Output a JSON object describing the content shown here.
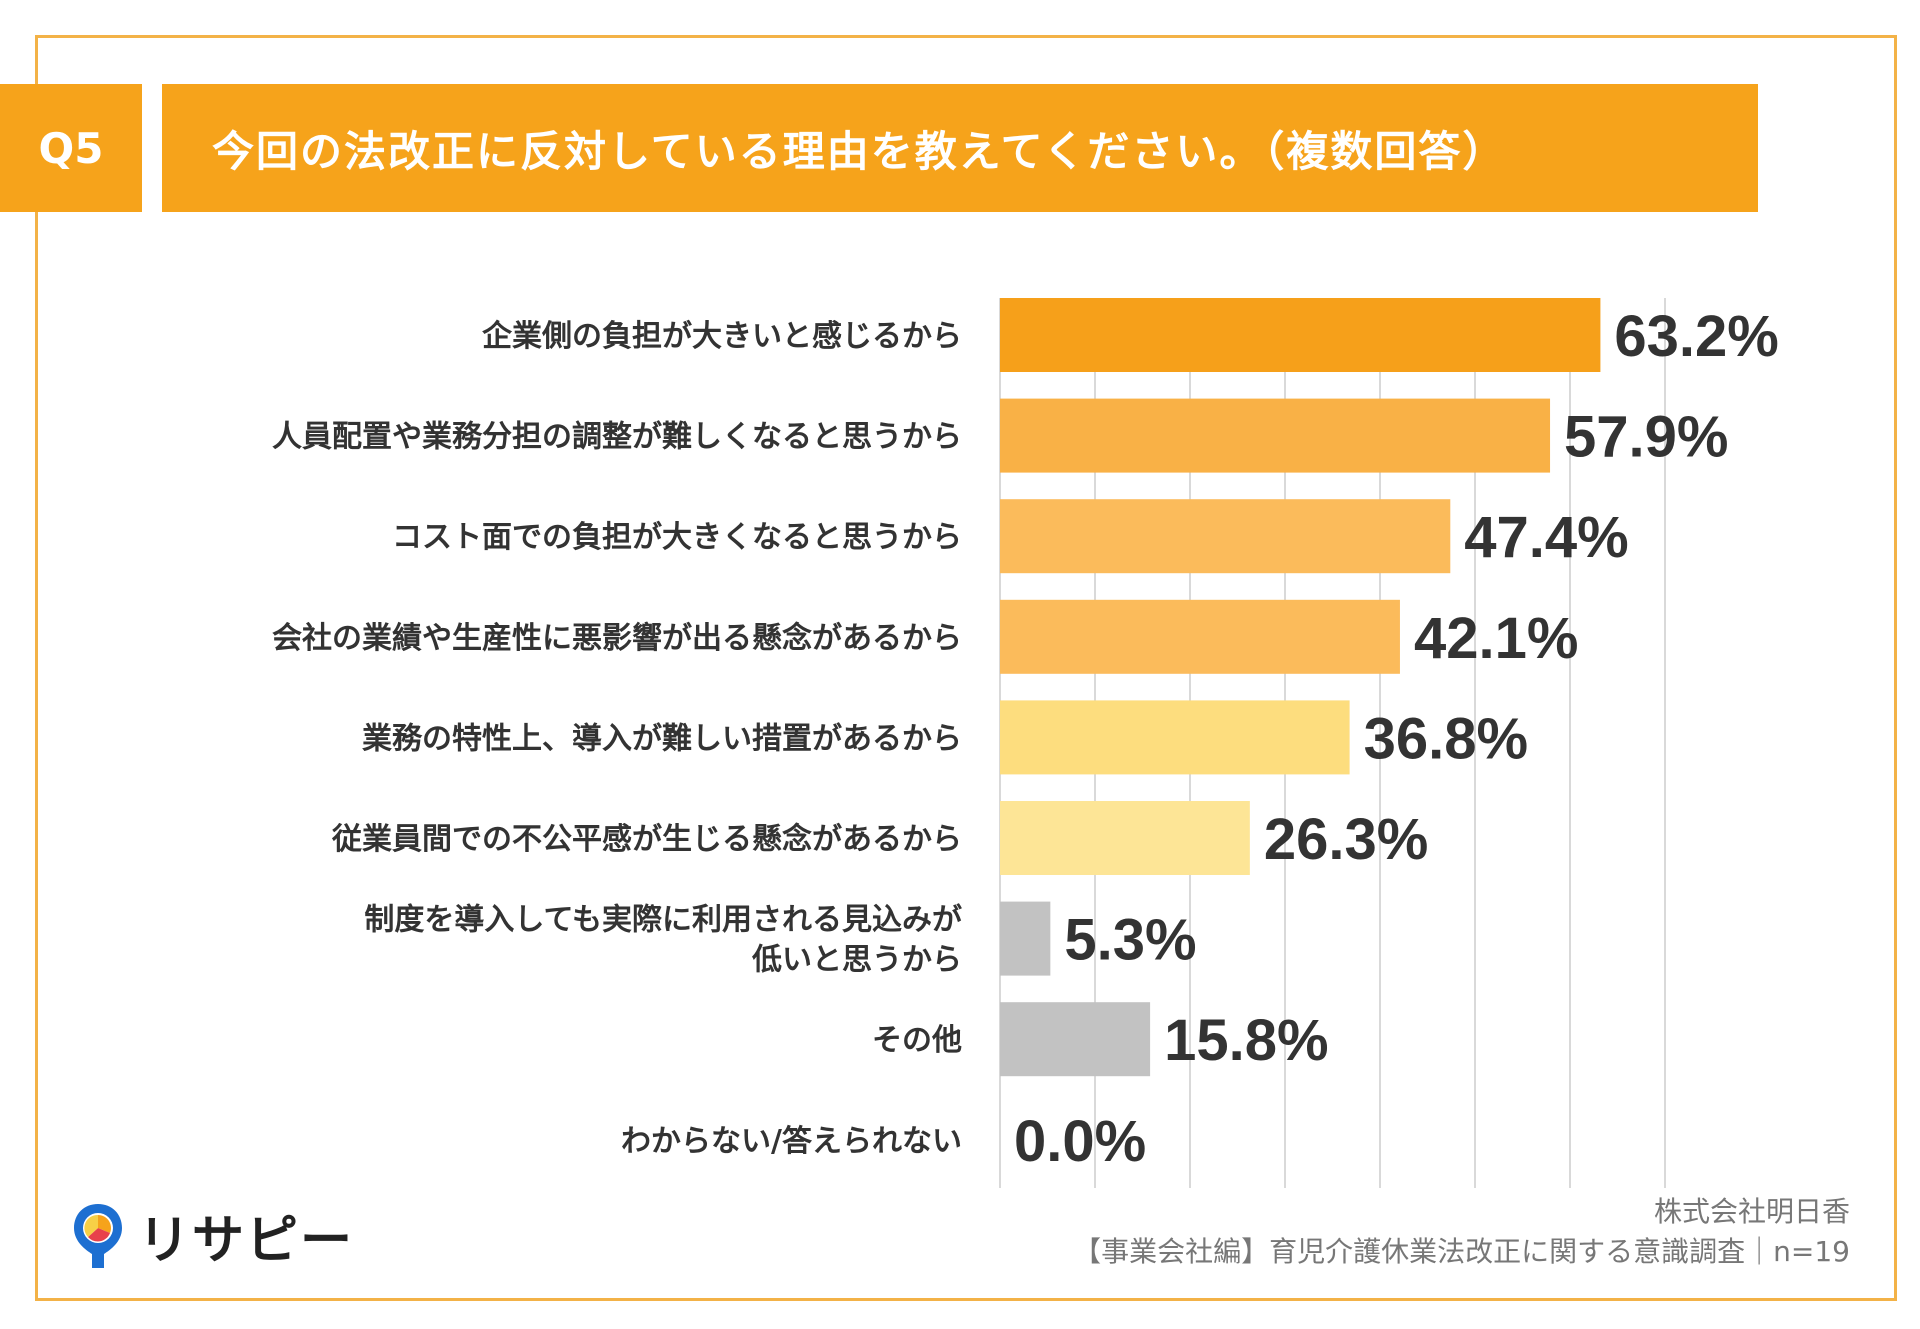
{
  "header": {
    "question_no": "Q5",
    "title": "今回の法改正に反対している理由を教えてください。（複数回答）"
  },
  "chart_data": {
    "type": "bar",
    "orientation": "horizontal",
    "title": "今回の法改正に反対している理由を教えてください。（複数回答）",
    "categories": [
      "企業側の負担が大きいと感じるから",
      "人員配置や業務分担の調整が難しくなると思うから",
      "コスト面での負担が大きくなると思うから",
      "会社の業績や生産性に悪影響が出る懸念があるから",
      "業務の特性上、導入が難しい措置があるから",
      "従業員間での不公平感が生じる懸念があるから",
      "制度を導入しても実際に利用される見込みが\n低いと思うから",
      "その他",
      "わからない/答えられない"
    ],
    "values": [
      63.2,
      57.9,
      47.4,
      42.1,
      36.8,
      26.3,
      5.3,
      15.8,
      0.0
    ],
    "value_labels": [
      "63.2%",
      "57.9%",
      "47.4%",
      "42.1%",
      "36.8%",
      "26.3%",
      "5.3%",
      "15.8%",
      "0.0%"
    ],
    "colors": [
      "#f6a01a",
      "#f9b146",
      "#fbbb5b",
      "#fbbb5b",
      "#fddd7e",
      "#fde596",
      "#c2c2c2",
      "#c2c2c2",
      "#c2c2c2"
    ],
    "xlim": [
      0,
      70
    ],
    "grid": true,
    "xlabel": "",
    "ylabel": ""
  },
  "footer": {
    "company": "株式会社明日香",
    "survey": "【事業会社編】育児介護休業法改正に関する意識調査｜n=19"
  },
  "logo": {
    "text": "リサピー"
  },
  "colors": {
    "accent": "#f6a31b",
    "frame": "#f3b247",
    "grid": "#d9d9d9",
    "text": "#333333"
  }
}
